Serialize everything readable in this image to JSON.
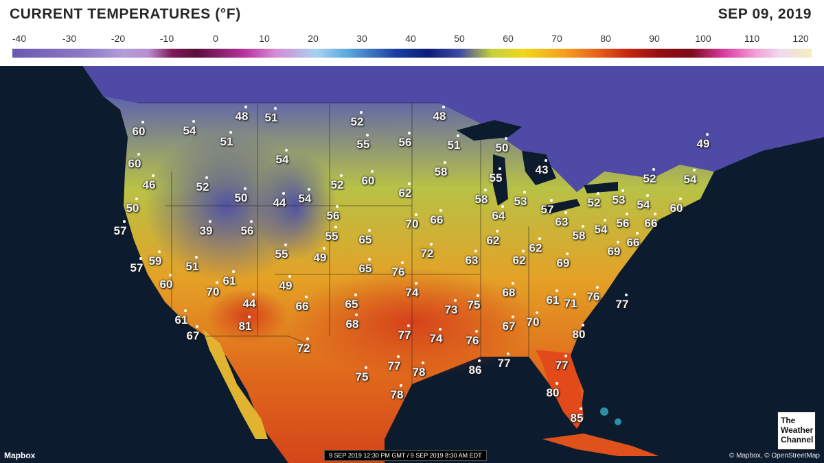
{
  "header": {
    "title": "CURRENT TEMPERATURES (°F)",
    "date": "SEP 09, 2019"
  },
  "scale": {
    "ticks": [
      "-40",
      "-30",
      "-20",
      "-10",
      "0",
      "10",
      "20",
      "30",
      "40",
      "50",
      "60",
      "70",
      "80",
      "90",
      "100",
      "110",
      "120"
    ],
    "colors": {
      "cold": "#6b58b0",
      "freezing": "#0c1d7a",
      "mild": "#f1d71a",
      "hot": "#c8250f",
      "extreme": "#f3efc2"
    }
  },
  "map": {
    "colors": {
      "ocean": "#0d1b2e",
      "land_cool": "#4a4fa5",
      "land_mild": "#d4c63a",
      "land_warm": "#e8791a",
      "land_hot": "#d3401a"
    },
    "readings": [
      {
        "id": "r1",
        "value": "60"
      },
      {
        "id": "r2",
        "value": "54"
      },
      {
        "id": "r3",
        "value": "48"
      },
      {
        "id": "r4",
        "value": "51"
      },
      {
        "id": "r5",
        "value": "52"
      },
      {
        "id": "r6",
        "value": "48"
      },
      {
        "id": "r7",
        "value": "51"
      },
      {
        "id": "r8",
        "value": "55"
      },
      {
        "id": "r9",
        "value": "56"
      },
      {
        "id": "r10",
        "value": "51"
      },
      {
        "id": "r11",
        "value": "50"
      },
      {
        "id": "r12",
        "value": "49"
      },
      {
        "id": "r13",
        "value": "60"
      },
      {
        "id": "r14",
        "value": "54"
      },
      {
        "id": "r15",
        "value": "46"
      },
      {
        "id": "r16",
        "value": "52"
      },
      {
        "id": "r17",
        "value": "52"
      },
      {
        "id": "r18",
        "value": "60"
      },
      {
        "id": "r19",
        "value": "58"
      },
      {
        "id": "r20",
        "value": "55"
      },
      {
        "id": "r21",
        "value": "43"
      },
      {
        "id": "r22",
        "value": "52"
      },
      {
        "id": "r23",
        "value": "54"
      },
      {
        "id": "r24",
        "value": "50"
      },
      {
        "id": "r25",
        "value": "50"
      },
      {
        "id": "r26",
        "value": "44"
      },
      {
        "id": "r27",
        "value": "54"
      },
      {
        "id": "r28",
        "value": "62"
      },
      {
        "id": "r29",
        "value": "58"
      },
      {
        "id": "r30",
        "value": "53"
      },
      {
        "id": "r31",
        "value": "57"
      },
      {
        "id": "r32",
        "value": "52"
      },
      {
        "id": "r33",
        "value": "53"
      },
      {
        "id": "r34",
        "value": "54"
      },
      {
        "id": "r35",
        "value": "60"
      },
      {
        "id": "r36",
        "value": "57"
      },
      {
        "id": "r37",
        "value": "39"
      },
      {
        "id": "r38",
        "value": "56"
      },
      {
        "id": "r39",
        "value": "56"
      },
      {
        "id": "r40",
        "value": "70"
      },
      {
        "id": "r41",
        "value": "66"
      },
      {
        "id": "r42",
        "value": "64"
      },
      {
        "id": "r43",
        "value": "63"
      },
      {
        "id": "r44",
        "value": "56"
      },
      {
        "id": "r45",
        "value": "66"
      },
      {
        "id": "r46",
        "value": "55"
      },
      {
        "id": "r47",
        "value": "65"
      },
      {
        "id": "r48",
        "value": "58"
      },
      {
        "id": "r49",
        "value": "54"
      },
      {
        "id": "r50",
        "value": "57"
      },
      {
        "id": "r51",
        "value": "59"
      },
      {
        "id": "r52",
        "value": "51"
      },
      {
        "id": "r53",
        "value": "55"
      },
      {
        "id": "r54",
        "value": "49"
      },
      {
        "id": "r55",
        "value": "72"
      },
      {
        "id": "r56",
        "value": "62"
      },
      {
        "id": "r57",
        "value": "62"
      },
      {
        "id": "r58",
        "value": "66"
      },
      {
        "id": "r59",
        "value": "69"
      },
      {
        "id": "r60",
        "value": "60"
      },
      {
        "id": "r61",
        "value": "61"
      },
      {
        "id": "r62",
        "value": "70"
      },
      {
        "id": "r63",
        "value": "76"
      },
      {
        "id": "r64",
        "value": "65"
      },
      {
        "id": "r65",
        "value": "63"
      },
      {
        "id": "r66",
        "value": "62"
      },
      {
        "id": "r67",
        "value": "69"
      },
      {
        "id": "r68",
        "value": "49"
      },
      {
        "id": "r69",
        "value": "74"
      },
      {
        "id": "r70",
        "value": "68"
      },
      {
        "id": "r71",
        "value": "44"
      },
      {
        "id": "r72",
        "value": "66"
      },
      {
        "id": "r73",
        "value": "65"
      },
      {
        "id": "r74",
        "value": "73"
      },
      {
        "id": "r75",
        "value": "75"
      },
      {
        "id": "r76",
        "value": "61"
      },
      {
        "id": "r77",
        "value": "71"
      },
      {
        "id": "r78",
        "value": "76"
      },
      {
        "id": "r79",
        "value": "77"
      },
      {
        "id": "r80",
        "value": "81"
      },
      {
        "id": "r81",
        "value": "68"
      },
      {
        "id": "r82",
        "value": "67"
      },
      {
        "id": "r83",
        "value": "70"
      },
      {
        "id": "r84",
        "value": "61"
      },
      {
        "id": "r85",
        "value": "67"
      },
      {
        "id": "r86",
        "value": "77"
      },
      {
        "id": "r87",
        "value": "74"
      },
      {
        "id": "r88",
        "value": "76"
      },
      {
        "id": "r89",
        "value": "80"
      },
      {
        "id": "r90",
        "value": "72"
      },
      {
        "id": "r91",
        "value": "77"
      },
      {
        "id": "r92",
        "value": "78"
      },
      {
        "id": "r93",
        "value": "86"
      },
      {
        "id": "r94",
        "value": "77"
      },
      {
        "id": "r95",
        "value": "77"
      },
      {
        "id": "r96",
        "value": "75"
      },
      {
        "id": "r97",
        "value": "78"
      },
      {
        "id": "r98",
        "value": "80"
      },
      {
        "id": "r99",
        "value": "85"
      }
    ]
  },
  "footer": {
    "mapbox": "Mapbox",
    "timestamp": "9 SEP 2019 12:30 PM GMT / 9 SEP 2019 8:30 AM EDT",
    "attribution": "© Mapbox, © OpenStreetMap",
    "logo_line1": "The",
    "logo_line2": "Weather",
    "logo_line3": "Channel"
  }
}
